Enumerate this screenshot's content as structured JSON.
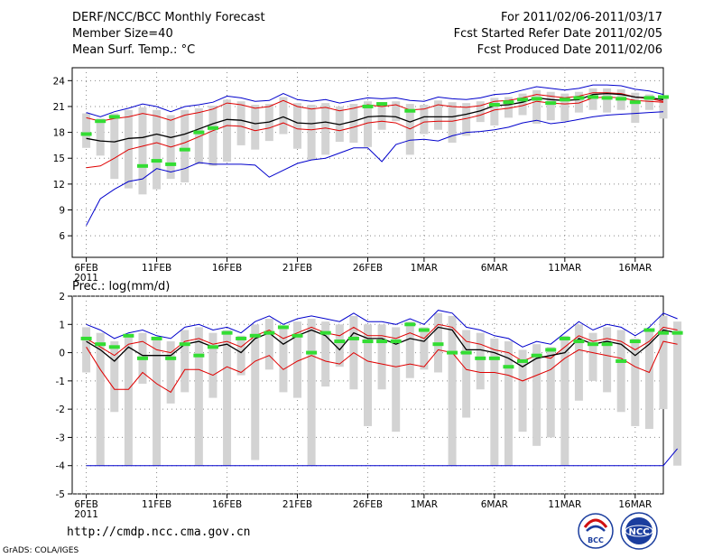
{
  "header": {
    "title": "DERF/NCC/BCC Monthly Forecast",
    "member_size": "Member Size=40",
    "variable": "Mean Surf. Temp.: °C",
    "period": "For 2011/02/06-2011/03/17",
    "refer_date": "Fcst Started Refer Date 2011/02/05",
    "produced_date": "Fcst Produced Date 2011/02/06"
  },
  "footer": {
    "url": "http://cmdp.ncc.cma.gov.cn",
    "grads": "GrADS: COLA/IGES",
    "logo_left_text": "BCC",
    "logo_right_text": "NCC"
  },
  "colors": {
    "max": "#0000cc",
    "min": "#0000cc",
    "p_hi": "#e00000",
    "p_lo": "#e00000",
    "mean": "#000000",
    "obs": "#33dd33",
    "box": "#d3d3d3"
  },
  "chart_data": [
    {
      "type": "line",
      "title": "Mean Surf. Temp.: °C",
      "x_tick_labels": [
        "6FEB\n2011",
        "11FEB",
        "16FEB",
        "21FEB",
        "26FEB",
        "1MAR",
        "6MAR",
        "11MAR",
        "16MAR"
      ],
      "x_tick_days": [
        1,
        6,
        11,
        16,
        21,
        25,
        30,
        35,
        40
      ],
      "yticks": [
        6,
        9,
        12,
        15,
        18,
        21,
        24
      ],
      "ylim": [
        3.5,
        25.5
      ],
      "xlim": [
        0,
        42
      ],
      "series": [
        {
          "key": "max",
          "values": [
            20.3,
            19.8,
            20.4,
            20.8,
            21.3,
            21.0,
            20.4,
            21.0,
            21.2,
            21.5,
            22.2,
            22.0,
            21.6,
            21.7,
            22.5,
            21.8,
            21.6,
            21.8,
            21.4,
            21.7,
            22.0,
            21.9,
            22.0,
            21.7,
            21.6,
            22.1,
            21.9,
            21.8,
            22.0,
            22.4,
            22.5,
            22.9,
            23.3,
            23.1,
            22.9,
            23.1,
            23.5,
            23.5,
            23.4,
            23.0,
            22.8,
            22.4
          ]
        },
        {
          "key": "p_hi",
          "values": [
            19.7,
            19.3,
            19.6,
            19.8,
            20.2,
            19.9,
            19.4,
            20.0,
            20.3,
            20.7,
            21.4,
            21.2,
            20.8,
            21.0,
            21.7,
            21.0,
            20.7,
            20.9,
            20.5,
            20.8,
            21.2,
            21.0,
            21.2,
            20.6,
            20.7,
            21.2,
            21.0,
            20.9,
            21.1,
            21.6,
            21.7,
            22.0,
            22.4,
            22.2,
            22.0,
            22.2,
            22.6,
            22.6,
            22.5,
            22.1,
            21.9,
            21.6
          ]
        },
        {
          "key": "mean",
          "values": [
            17.3,
            17.0,
            16.9,
            17.3,
            17.4,
            17.8,
            17.4,
            17.8,
            18.4,
            19.0,
            19.5,
            19.4,
            19.0,
            19.2,
            19.8,
            19.1,
            19.0,
            19.2,
            18.9,
            19.3,
            19.8,
            19.9,
            19.8,
            19.2,
            19.8,
            19.8,
            19.8,
            20.1,
            20.5,
            21.1,
            21.2,
            21.5,
            22.0,
            21.8,
            21.7,
            21.8,
            22.4,
            22.5,
            22.4,
            22.1,
            22.0,
            21.8
          ]
        },
        {
          "key": "p_lo",
          "values": [
            13.9,
            14.1,
            15.0,
            16.0,
            16.4,
            16.8,
            16.3,
            16.8,
            17.5,
            18.2,
            18.8,
            18.7,
            18.2,
            18.5,
            19.1,
            18.4,
            18.3,
            18.5,
            18.2,
            18.6,
            19.1,
            19.3,
            19.1,
            18.4,
            19.2,
            19.3,
            19.3,
            19.6,
            20.0,
            20.6,
            20.8,
            21.1,
            21.6,
            21.4,
            21.3,
            21.4,
            22.0,
            22.1,
            22.0,
            21.7,
            21.6,
            21.5
          ]
        },
        {
          "key": "min",
          "values": [
            7.2,
            10.3,
            11.4,
            12.3,
            12.6,
            13.8,
            13.4,
            13.8,
            14.5,
            14.3,
            14.3,
            14.3,
            14.2,
            12.8,
            13.6,
            14.4,
            14.8,
            15.0,
            15.6,
            16.2,
            16.2,
            14.6,
            16.6,
            17.1,
            17.2,
            17.0,
            17.6,
            18.0,
            18.1,
            18.3,
            18.6,
            19.1,
            19.4,
            19.0,
            19.2,
            19.5,
            19.8,
            20.0,
            20.1,
            20.2,
            20.3,
            20.4
          ]
        },
        {
          "key": "obs",
          "values": [
            17.8,
            19.3,
            19.8,
            null,
            14.1,
            14.7,
            14.3,
            16.0,
            18.0,
            18.5,
            null,
            null,
            null,
            null,
            null,
            null,
            null,
            null,
            null,
            null,
            21.0,
            21.3,
            null,
            20.5,
            null,
            null,
            null,
            null,
            null,
            21.2,
            21.5,
            21.8,
            21.9,
            21.4,
            21.8,
            22.0,
            22.1,
            22.0,
            21.9,
            21.5,
            22.0,
            22.1
          ]
        },
        {
          "key": "box_hi",
          "values": [
            20.2,
            19.6,
            20.2,
            20.6,
            20.9,
            20.6,
            20.0,
            20.6,
            20.8,
            21.1,
            21.8,
            21.6,
            21.2,
            21.3,
            22.1,
            21.4,
            21.2,
            21.4,
            21.0,
            21.3,
            21.6,
            21.5,
            21.6,
            21.3,
            21.2,
            21.7,
            21.5,
            21.4,
            21.6,
            22.0,
            22.1,
            22.5,
            22.9,
            22.7,
            22.5,
            22.7,
            23.1,
            23.1,
            23.0,
            22.6,
            22.4,
            22.0
          ]
        },
        {
          "key": "box_lo",
          "values": [
            16.2,
            15.3,
            12.6,
            11.5,
            10.8,
            11.4,
            12.6,
            12.2,
            14.3,
            14.1,
            14.6,
            16.5,
            16.0,
            17.0,
            17.8,
            16.1,
            14.8,
            15.4,
            16.9,
            16.8,
            16.3,
            18.3,
            19.3,
            15.4,
            17.8,
            18.3,
            16.8,
            17.6,
            19.2,
            18.8,
            19.7,
            20.0,
            19.0,
            19.4,
            19.3,
            20.3,
            20.6,
            20.3,
            20.6,
            19.1,
            20.6,
            19.6
          ]
        }
      ]
    },
    {
      "type": "line",
      "title": "Prec.: log(mm/d)",
      "x_tick_labels": [
        "6FEB\n2011",
        "11FEB",
        "16FEB",
        "21FEB",
        "26FEB",
        "1MAR",
        "6MAR",
        "11MAR",
        "16MAR"
      ],
      "x_tick_days": [
        1,
        6,
        11,
        16,
        21,
        25,
        30,
        35,
        40
      ],
      "yticks": [
        -5,
        -4,
        -3,
        -2,
        -1,
        0,
        1,
        2
      ],
      "ylim": [
        -5,
        2
      ],
      "xlim": [
        0,
        42
      ],
      "series": [
        {
          "key": "max",
          "values": [
            1.0,
            0.8,
            0.5,
            0.7,
            0.8,
            0.6,
            0.5,
            0.9,
            1.0,
            0.8,
            0.9,
            0.7,
            1.1,
            1.3,
            1.0,
            1.2,
            1.3,
            1.2,
            1.1,
            1.4,
            1.1,
            1.1,
            1.0,
            1.2,
            1.0,
            1.5,
            1.4,
            0.9,
            0.8,
            0.6,
            0.5,
            0.2,
            0.4,
            0.3,
            0.7,
            1.1,
            0.8,
            1.0,
            0.9,
            0.6,
            0.9,
            1.4,
            1.2
          ]
        },
        {
          "key": "p_hi",
          "values": [
            0.5,
            0.2,
            -0.1,
            0.3,
            0.4,
            0.1,
            0.0,
            0.4,
            0.5,
            0.3,
            0.4,
            0.2,
            0.6,
            0.8,
            0.5,
            0.7,
            0.9,
            0.7,
            0.6,
            0.9,
            0.6,
            0.6,
            0.5,
            0.7,
            0.5,
            1.0,
            0.9,
            0.4,
            0.3,
            0.1,
            0.0,
            -0.3,
            -0.1,
            -0.2,
            0.2,
            0.6,
            0.4,
            0.5,
            0.4,
            0.1,
            0.4,
            0.9,
            0.8
          ]
        },
        {
          "key": "mean",
          "values": [
            0.4,
            0.1,
            -0.3,
            0.2,
            -0.1,
            -0.1,
            -0.1,
            0.3,
            0.4,
            0.2,
            0.3,
            0.0,
            0.5,
            0.7,
            0.3,
            0.6,
            0.8,
            0.6,
            0.1,
            0.7,
            0.5,
            0.5,
            0.3,
            0.5,
            0.4,
            0.9,
            0.8,
            0.1,
            0.1,
            0.0,
            -0.2,
            -0.5,
            -0.2,
            -0.1,
            0.0,
            0.5,
            0.3,
            0.4,
            0.3,
            -0.1,
            0.3,
            0.8,
            0.7
          ]
        },
        {
          "key": "p_lo",
          "values": [
            0.2,
            -0.6,
            -1.3,
            -1.3,
            -0.7,
            -1.1,
            -1.4,
            -0.6,
            -0.6,
            -0.8,
            -0.5,
            -0.7,
            -0.3,
            -0.1,
            -0.6,
            -0.3,
            -0.1,
            -0.3,
            -0.4,
            0.0,
            -0.3,
            -0.4,
            -0.5,
            -0.4,
            -0.5,
            0.1,
            0.0,
            -0.6,
            -0.7,
            -0.7,
            -0.8,
            -1.0,
            -0.8,
            -0.6,
            -0.2,
            0.1,
            0.0,
            -0.1,
            -0.2,
            -0.5,
            -0.7,
            0.4,
            0.3
          ]
        },
        {
          "key": "min",
          "values": [
            -4.0,
            -4.0,
            -4.0,
            -4.0,
            -4.0,
            -4.0,
            -4.0,
            -4.0,
            -4.0,
            -4.0,
            -4.0,
            -4.0,
            -4.0,
            -4.0,
            -4.0,
            -4.0,
            -4.0,
            -4.0,
            -4.0,
            -4.0,
            -4.0,
            -4.0,
            -4.0,
            -4.0,
            -4.0,
            -4.0,
            -4.0,
            -4.0,
            -4.0,
            -4.0,
            -4.0,
            -4.0,
            -4.0,
            -4.0,
            -4.0,
            -4.0,
            -4.0,
            -4.0,
            -4.0,
            -4.0,
            -4.0,
            -4.0,
            -3.4
          ]
        },
        {
          "key": "obs",
          "values": [
            0.5,
            0.3,
            0.2,
            0.6,
            -0.2,
            0.5,
            -0.2,
            0.3,
            -0.1,
            0.2,
            0.7,
            0.5,
            0.6,
            0.7,
            0.9,
            0.6,
            0.0,
            0.7,
            0.4,
            0.5,
            0.4,
            0.4,
            0.4,
            1.0,
            0.8,
            0.3,
            0.0,
            0.0,
            -0.2,
            -0.2,
            -0.5,
            -0.3,
            -0.1,
            0.1,
            0.5,
            0.4,
            0.3,
            0.3,
            -0.3,
            0.4,
            0.8,
            0.7,
            0.7
          ]
        },
        {
          "key": "box_hi",
          "values": [
            0.9,
            0.7,
            0.4,
            0.6,
            0.7,
            0.5,
            0.4,
            0.8,
            0.9,
            0.7,
            0.8,
            0.6,
            1.0,
            1.2,
            0.9,
            1.1,
            1.2,
            1.1,
            1.0,
            1.3,
            1.0,
            1.0,
            0.9,
            1.1,
            0.9,
            1.4,
            1.3,
            0.8,
            0.7,
            0.5,
            0.4,
            0.1,
            0.3,
            0.2,
            0.6,
            1.0,
            0.7,
            0.9,
            0.8,
            0.5,
            0.8,
            1.3,
            1.1
          ]
        },
        {
          "key": "box_lo",
          "values": [
            -0.7,
            -4.0,
            -2.1,
            -4.0,
            -1.1,
            -4.0,
            -1.8,
            -1.4,
            -4.0,
            -1.6,
            -4.0,
            -0.8,
            -3.8,
            -0.6,
            -1.4,
            -1.6,
            -4.0,
            -1.2,
            -0.5,
            -1.3,
            -2.6,
            -1.3,
            -2.8,
            -0.9,
            -0.6,
            -0.7,
            -4.0,
            -2.3,
            -1.3,
            -4.0,
            -4.0,
            -2.8,
            -3.3,
            -3.0,
            -4.0,
            -1.7,
            -1.0,
            -1.4,
            -2.1,
            -2.6,
            -2.7,
            -2.0,
            -4.0
          ]
        }
      ]
    }
  ]
}
